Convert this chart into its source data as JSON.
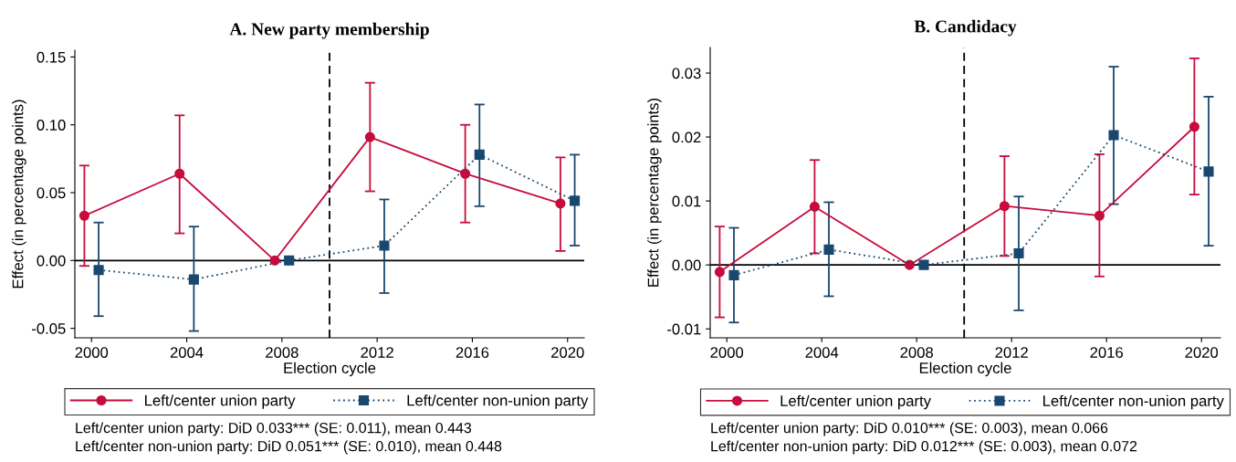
{
  "chart_data": [
    {
      "type": "line",
      "title": "A. New party membership",
      "xlabel": "Election cycle",
      "ylabel": "Effect (in percentage points)",
      "xlim": [
        1999.3,
        2020.7
      ],
      "xticks": [
        2000,
        2004,
        2008,
        2012,
        2016,
        2020
      ],
      "ylim": [
        -0.057,
        0.155
      ],
      "yticks": [
        {
          "value": -0.05,
          "label": "-0.05"
        },
        {
          "value": 0,
          "label": "0.00"
        },
        {
          "value": 0.05,
          "label": "0.05"
        },
        {
          "value": 0.1,
          "label": "0.10"
        },
        {
          "value": 0.15,
          "label": "0.15"
        }
      ],
      "grid": false,
      "legend": "bottom",
      "series": [
        {
          "name": "Left/center union party",
          "color": "#c60c3c",
          "marker": "circle",
          "line_style": "solid",
          "x": [
            1999.7,
            2003.7,
            2007.7,
            2011.7,
            2015.7,
            2019.7
          ],
          "values": [
            0.033,
            0.064,
            0.0,
            0.091,
            0.064,
            0.042
          ],
          "errors": [
            [
              -0.004,
              0.07
            ],
            [
              0.02,
              0.107
            ],
            null,
            [
              0.051,
              0.131
            ],
            [
              0.028,
              0.1
            ],
            [
              0.007,
              0.076
            ]
          ]
        },
        {
          "name": "Left/center non-union party",
          "color": "#1a476f",
          "marker": "square",
          "line_style": "dotted",
          "x": [
            2000.3,
            2004.3,
            2008.3,
            2012.3,
            2016.3,
            2020.3
          ],
          "values": [
            -0.007,
            -0.014,
            0.0,
            0.011,
            0.078,
            0.044
          ],
          "errors": [
            [
              -0.041,
              0.028
            ],
            [
              -0.052,
              0.025
            ],
            null,
            [
              -0.024,
              0.045
            ],
            [
              0.04,
              0.115
            ],
            [
              0.011,
              0.078
            ]
          ]
        }
      ],
      "ref_lines": [
        {
          "axis": "y",
          "value": 0,
          "color": "#000000",
          "line_style": "solid"
        },
        {
          "axis": "x",
          "value": 2010,
          "color": "#000000",
          "line_style": "dashed"
        }
      ],
      "annotations": [
        "Left/center union party: DiD 0.033*** (SE: 0.011), mean 0.443",
        "Left/center non-union party: DiD 0.051*** (SE: 0.010), mean 0.448"
      ]
    },
    {
      "type": "line",
      "title": "B. Candidacy",
      "xlabel": "Election cycle",
      "ylabel": "Effect (in percentage points)",
      "xlim": [
        1999.3,
        2020.8
      ],
      "xticks": [
        2000,
        2004,
        2008,
        2012,
        2016,
        2020
      ],
      "ylim": [
        -0.0114,
        0.034
      ],
      "yticks": [
        {
          "value": -0.01,
          "label": "-0.01"
        },
        {
          "value": 0,
          "label": "0.00"
        },
        {
          "value": 0.01,
          "label": "0.01"
        },
        {
          "value": 0.02,
          "label": "0.02"
        },
        {
          "value": 0.03,
          "label": "0.03"
        }
      ],
      "grid": false,
      "legend": "bottom",
      "series": [
        {
          "name": "Left/center union party",
          "color": "#c60c3c",
          "marker": "circle",
          "line_style": "solid",
          "x": [
            1999.7,
            2003.7,
            2007.7,
            2011.7,
            2015.7,
            2019.7
          ],
          "values": [
            -0.0011,
            0.0091,
            0.0,
            0.0092,
            0.0077,
            0.0216
          ],
          "errors": [
            [
              -0.0082,
              0.006
            ],
            [
              0.0018,
              0.0164
            ],
            null,
            [
              0.0014,
              0.017
            ],
            [
              -0.0018,
              0.0173
            ],
            [
              0.011,
              0.0323
            ]
          ]
        },
        {
          "name": "Left/center non-union party",
          "color": "#1a476f",
          "marker": "square",
          "line_style": "dotted",
          "x": [
            2000.3,
            2004.3,
            2008.3,
            2012.3,
            2016.3,
            2020.3
          ],
          "values": [
            -0.0016,
            0.0024,
            0.0,
            0.0018,
            0.0203,
            0.0146
          ],
          "errors": [
            [
              -0.009,
              0.0058
            ],
            [
              -0.0049,
              0.0098
            ],
            null,
            [
              -0.0071,
              0.0107
            ],
            [
              0.0095,
              0.031
            ],
            [
              0.003,
              0.0263
            ]
          ]
        }
      ],
      "ref_lines": [
        {
          "axis": "y",
          "value": 0,
          "color": "#000000",
          "line_style": "solid"
        },
        {
          "axis": "x",
          "value": 2010,
          "color": "#000000",
          "line_style": "dashed"
        }
      ],
      "annotations": [
        "Left/center union party: DiD 0.010*** (SE: 0.003), mean 0.066",
        "Left/center non-union party: DiD 0.012*** (SE: 0.003), mean 0.072"
      ]
    }
  ]
}
